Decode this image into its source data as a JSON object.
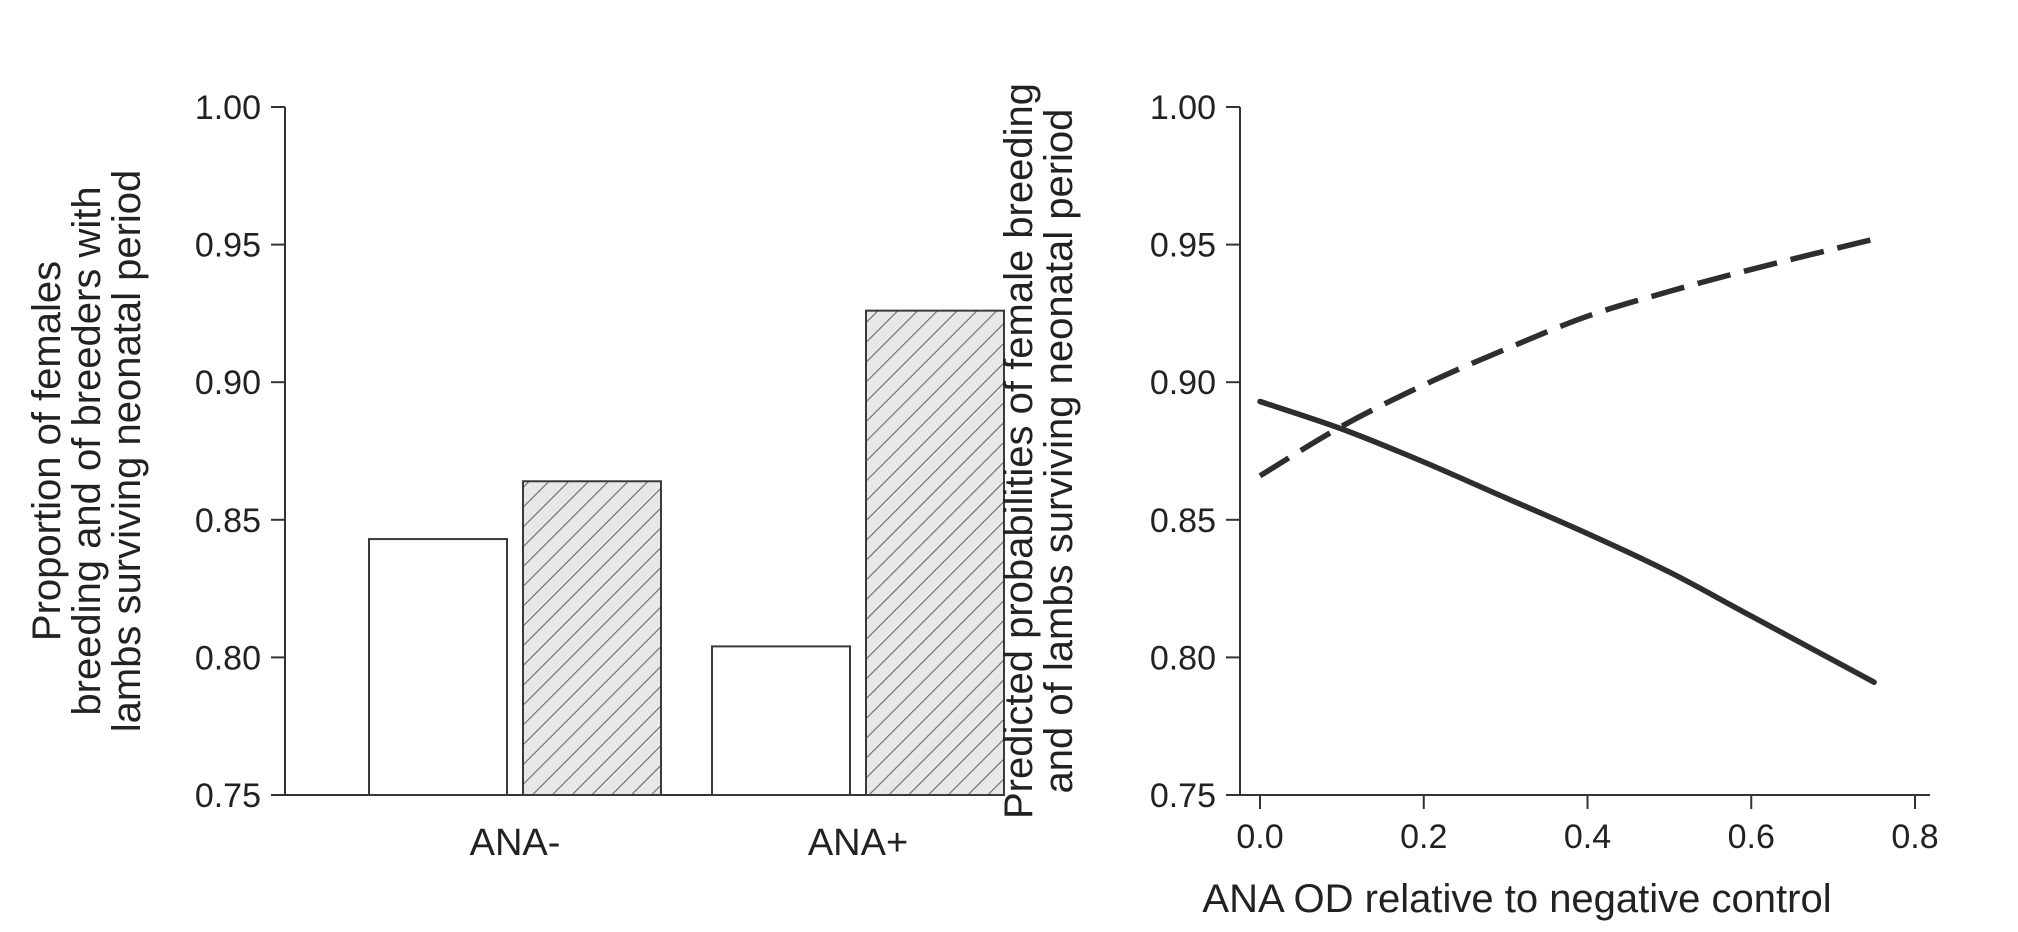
{
  "chart_data": [
    {
      "type": "bar",
      "categories": [
        "ANA-",
        "ANA+"
      ],
      "series": [
        {
          "values": [
            0.843,
            0.804
          ],
          "pattern": "none",
          "color": "#ffffff"
        },
        {
          "values": [
            0.864,
            0.926
          ],
          "pattern": "diagonal-hatch",
          "color": "#d9d9d9"
        }
      ],
      "xlabel": "",
      "ylabel": [
        "Proportion of females",
        "breeding and of breeders with",
        "lambs surviving neonatal period"
      ],
      "ylim": [
        0.75,
        1.0
      ],
      "yticks": [
        "0.75",
        "0.80",
        "0.85",
        "0.90",
        "0.95",
        "1.00"
      ],
      "grid": false,
      "legend": "none"
    },
    {
      "type": "line",
      "series": [
        {
          "style": "solid",
          "x": [
            0.0,
            0.1,
            0.2,
            0.3,
            0.4,
            0.5,
            0.6,
            0.75
          ],
          "y": [
            0.893,
            0.883,
            0.871,
            0.858,
            0.845,
            0.831,
            0.815,
            0.791
          ]
        },
        {
          "style": "dashed",
          "x": [
            0.0,
            0.1,
            0.2,
            0.3,
            0.4,
            0.5,
            0.6,
            0.75
          ],
          "y": [
            0.866,
            0.884,
            0.899,
            0.912,
            0.924,
            0.933,
            0.941,
            0.952
          ]
        }
      ],
      "xlabel": "ANA OD relative to negative control",
      "ylabel": [
        "Predicted probabilities of female breeding",
        "and of lambs surviving neonatal period"
      ],
      "xlim": [
        0.0,
        0.8
      ],
      "ylim": [
        0.75,
        1.0
      ],
      "xticks": [
        "0.0",
        "0.2",
        "0.4",
        "0.6",
        "0.8"
      ],
      "yticks": [
        "0.75",
        "0.80",
        "0.85",
        "0.90",
        "0.95",
        "1.00"
      ],
      "grid": false,
      "legend": "none"
    }
  ]
}
